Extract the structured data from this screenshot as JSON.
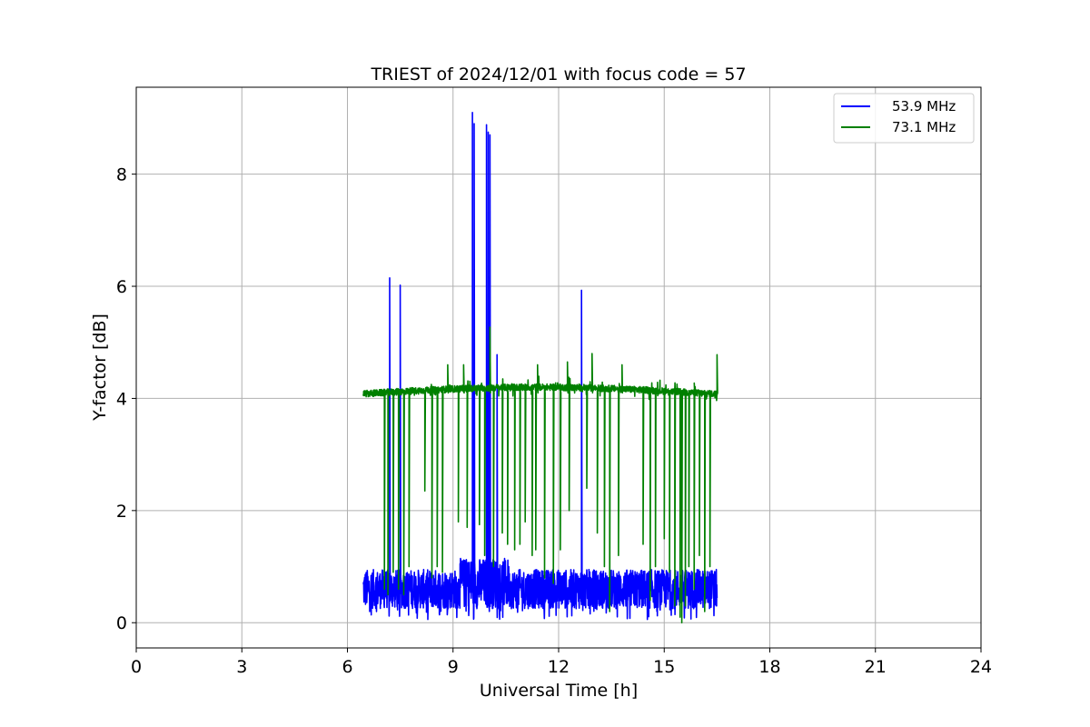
{
  "chart_data": {
    "type": "line",
    "title": "TRIEST of 2024/12/01 with focus code = 57",
    "xlabel": "Universal Time [h]",
    "ylabel": "Y-factor [dB]",
    "xlim": [
      0,
      24
    ],
    "ylim": [
      -0.45,
      9.55
    ],
    "xticks": [
      0,
      3,
      6,
      9,
      12,
      15,
      18,
      21,
      24
    ],
    "yticks": [
      0,
      2,
      4,
      6,
      8
    ],
    "grid": true,
    "legend_position": "top-right",
    "series": [
      {
        "name": "53.9 MHz",
        "color": "#0000ff",
        "baseline": {
          "x_start": 6.45,
          "x_end": 16.5,
          "y_low": 0.25,
          "y_high": 0.95,
          "y_max_mid": 1.15
        },
        "spikes": [
          {
            "x": 7.2,
            "y": 6.15
          },
          {
            "x": 7.5,
            "y": 6.02
          },
          {
            "x": 9.55,
            "y": 9.1
          },
          {
            "x": 9.6,
            "y": 8.9
          },
          {
            "x": 9.95,
            "y": 8.88
          },
          {
            "x": 10.0,
            "y": 8.75
          },
          {
            "x": 10.05,
            "y": 8.7
          },
          {
            "x": 10.25,
            "y": 4.78
          },
          {
            "x": 12.65,
            "y": 5.93
          }
        ]
      },
      {
        "name": "73.1 MHz",
        "color": "#008000",
        "baseline": {
          "x_start": 6.45,
          "x_end": 16.5,
          "y_low": 3.9,
          "y_high": 4.3
        },
        "spikes": [
          {
            "x": 8.85,
            "y": 4.6
          },
          {
            "x": 9.3,
            "y": 4.6
          },
          {
            "x": 10.05,
            "y": 5.27
          },
          {
            "x": 11.4,
            "y": 4.6
          },
          {
            "x": 12.25,
            "y": 4.65
          },
          {
            "x": 12.95,
            "y": 4.8
          },
          {
            "x": 13.8,
            "y": 4.6
          },
          {
            "x": 16.5,
            "y": 4.78
          }
        ],
        "dips": [
          {
            "x": 7.05,
            "y": 0.6
          },
          {
            "x": 7.15,
            "y": 0.5
          },
          {
            "x": 7.3,
            "y": 0.9
          },
          {
            "x": 7.45,
            "y": 0.6
          },
          {
            "x": 7.6,
            "y": 0.5
          },
          {
            "x": 7.75,
            "y": 1.0
          },
          {
            "x": 8.2,
            "y": 2.35
          },
          {
            "x": 8.4,
            "y": 0.8
          },
          {
            "x": 8.55,
            "y": 1.0
          },
          {
            "x": 8.7,
            "y": 0.9
          },
          {
            "x": 9.15,
            "y": 1.8
          },
          {
            "x": 9.4,
            "y": 1.7
          },
          {
            "x": 9.75,
            "y": 1.75
          },
          {
            "x": 9.9,
            "y": 1.2
          },
          {
            "x": 10.15,
            "y": 1.0
          },
          {
            "x": 10.4,
            "y": 1.6
          },
          {
            "x": 10.55,
            "y": 1.4
          },
          {
            "x": 10.75,
            "y": 1.3
          },
          {
            "x": 10.9,
            "y": 1.4
          },
          {
            "x": 11.05,
            "y": 1.8
          },
          {
            "x": 11.25,
            "y": 1.2
          },
          {
            "x": 11.35,
            "y": 1.3
          },
          {
            "x": 11.6,
            "y": 0.8
          },
          {
            "x": 11.85,
            "y": 0.7
          },
          {
            "x": 12.05,
            "y": 1.3
          },
          {
            "x": 12.3,
            "y": 2.0
          },
          {
            "x": 12.8,
            "y": 2.4
          },
          {
            "x": 13.1,
            "y": 1.6
          },
          {
            "x": 13.3,
            "y": 1.0
          },
          {
            "x": 13.45,
            "y": 0.2
          },
          {
            "x": 13.7,
            "y": 1.2
          },
          {
            "x": 14.4,
            "y": 1.4
          },
          {
            "x": 14.6,
            "y": 0.4
          },
          {
            "x": 14.75,
            "y": 1.0
          },
          {
            "x": 15.0,
            "y": 1.5
          },
          {
            "x": 15.15,
            "y": 0.9
          },
          {
            "x": 15.3,
            "y": 0.3
          },
          {
            "x": 15.45,
            "y": 0.1
          },
          {
            "x": 15.5,
            "y": 0.0
          },
          {
            "x": 15.6,
            "y": 0.3
          },
          {
            "x": 15.7,
            "y": 1.0
          },
          {
            "x": 15.85,
            "y": 0.6
          },
          {
            "x": 16.0,
            "y": 1.2
          },
          {
            "x": 16.15,
            "y": 0.2
          },
          {
            "x": 16.3,
            "y": 1.0
          }
        ]
      }
    ]
  }
}
